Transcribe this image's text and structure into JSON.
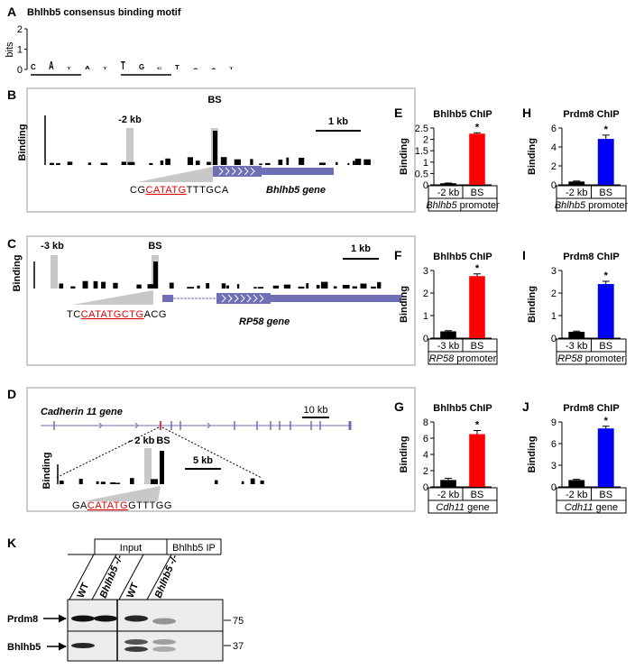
{
  "panel_a": {
    "letter": "A",
    "title": "Bhlhb5 consensus binding motif",
    "ylabel": "bits",
    "ylim": [
      0,
      2
    ],
    "yticks": [
      0,
      1,
      2
    ],
    "logo": [
      {
        "letter": "C",
        "bits": 1.0,
        "color": "#2040c0"
      },
      {
        "letter": "A",
        "bits": 1.55,
        "color": "#1a9641"
      },
      {
        "letter": "T",
        "bits": 0.45,
        "color": "#e02020"
      },
      {
        "letter": "A",
        "bits": 0.6,
        "color": "#1a9641"
      },
      {
        "letter": "T",
        "bits": 0.45,
        "color": "#e02020"
      },
      {
        "letter": "T",
        "bits": 1.5,
        "color": "#e02020"
      },
      {
        "letter": "G",
        "bits": 1.0,
        "color": "#f0a000"
      },
      {
        "letter": "C",
        "bits": 0.45,
        "color": "#2040c0"
      },
      {
        "letter": "T",
        "bits": 0.9,
        "color": "#e02020"
      },
      {
        "letter": "A",
        "bits": 0.2,
        "color": "#1a9641"
      },
      {
        "letter": "A",
        "bits": 0.25,
        "color": "#1a9641"
      },
      {
        "letter": "T",
        "bits": 0.45,
        "color": "#e02020"
      }
    ]
  },
  "panel_b": {
    "letter": "B",
    "ylabel": "Binding",
    "control": "-2 kb",
    "site": "BS",
    "scale": "1 kb",
    "sequence": [
      "CG",
      "CATATG",
      "TTTGCA"
    ],
    "gene": "Bhlhb5 gene"
  },
  "panel_c": {
    "letter": "C",
    "ylabel": "Binding",
    "control": "-3 kb",
    "site": "BS",
    "scale": "1 kb",
    "sequence": [
      "TC",
      "CATATGCTG",
      "ACG"
    ],
    "gene": "RP58 gene"
  },
  "panel_d": {
    "letter": "D",
    "gene": "Cadherin 11 gene",
    "gene_scale": "10 kb",
    "ylabel": "Binding",
    "control": "- 2 kb",
    "site": "BS",
    "scale": "5 kb",
    "sequence": [
      "GA",
      "CATATG",
      "GTTTGG"
    ]
  },
  "chart_data": [
    {
      "panel": "E",
      "type": "bar",
      "title": "Bhlhb5 ChIP",
      "ylabel": "Binding",
      "categories": [
        "-2 kb",
        "BS"
      ],
      "values": [
        0.07,
        2.25
      ],
      "errors": [
        0.01,
        0.04
      ],
      "colors": [
        "#000000",
        "#ff0000"
      ],
      "ylim": [
        0,
        2.5
      ],
      "yticks": [
        0,
        0.5,
        1,
        1.5,
        2,
        2.5
      ],
      "annotation": "*",
      "xlabel": [
        "Bhlhb5",
        "promoter"
      ]
    },
    {
      "panel": "F",
      "type": "bar",
      "title": "Bhlhb5 ChIP",
      "ylabel": "Binding",
      "categories": [
        "-3 kb",
        "BS"
      ],
      "values": [
        0.3,
        2.75
      ],
      "errors": [
        0.03,
        0.1
      ],
      "colors": [
        "#000000",
        "#ff0000"
      ],
      "ylim": [
        0,
        3
      ],
      "yticks": [
        0,
        1,
        2,
        3
      ],
      "annotation": "*",
      "xlabel": [
        "RP58",
        "promoter"
      ]
    },
    {
      "panel": "G",
      "type": "bar",
      "title": "Bhlhb5 ChIP",
      "ylabel": "Binding",
      "categories": [
        "-2 kb",
        "BS"
      ],
      "values": [
        0.85,
        6.5
      ],
      "errors": [
        0.2,
        0.45
      ],
      "colors": [
        "#000000",
        "#ff0000"
      ],
      "ylim": [
        0,
        8
      ],
      "yticks": [
        0,
        2,
        4,
        6,
        8
      ],
      "annotation": "*",
      "xlabel": [
        "Cdh11",
        "gene"
      ]
    },
    {
      "panel": "H",
      "type": "bar",
      "title": "Prdm8 ChIP",
      "ylabel": "Binding",
      "categories": [
        "-2 kb",
        "BS"
      ],
      "values": [
        0.35,
        4.85
      ],
      "errors": [
        0.05,
        0.4
      ],
      "colors": [
        "#000000",
        "#0000ff"
      ],
      "ylim": [
        0,
        6
      ],
      "yticks": [
        0,
        2,
        4,
        6
      ],
      "annotation": "*",
      "xlabel": [
        "Bhlhb5",
        "promoter"
      ]
    },
    {
      "panel": "I",
      "type": "bar",
      "title": "Prdm8 ChIP",
      "ylabel": "Binding",
      "categories": [
        "-3 kb",
        "BS"
      ],
      "values": [
        0.28,
        2.4
      ],
      "errors": [
        0.03,
        0.12
      ],
      "colors": [
        "#000000",
        "#0000ff"
      ],
      "ylim": [
        0,
        3
      ],
      "yticks": [
        0,
        1,
        2,
        3
      ],
      "annotation": "*",
      "xlabel": [
        "RP58",
        "promoter"
      ]
    },
    {
      "panel": "J",
      "type": "bar",
      "title": "Prdm8 ChIP",
      "ylabel": "Binding",
      "categories": [
        "-2 kb",
        "BS"
      ],
      "values": [
        0.95,
        8.1
      ],
      "errors": [
        0.1,
        0.3
      ],
      "colors": [
        "#000000",
        "#0000ff"
      ],
      "ylim": [
        0,
        9
      ],
      "yticks": [
        0,
        3,
        6,
        9
      ],
      "annotation": "*",
      "xlabel": [
        "Cdh11",
        "gene"
      ]
    }
  ],
  "panel_k": {
    "letter": "K",
    "groups": [
      "Input",
      "Bhlhb5 IP"
    ],
    "lanes": [
      "WT",
      "Bhlhb5 -/-",
      "WT",
      "Bhlhb5 -/-"
    ],
    "proteins": [
      "Prdm8",
      "Bhlhb5"
    ],
    "markers": [
      75,
      37
    ]
  }
}
